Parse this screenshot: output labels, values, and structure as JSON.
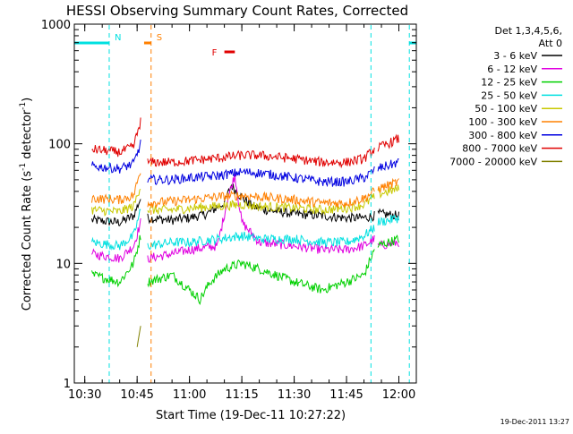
{
  "chart_data": {
    "type": "line",
    "title": "HESSI Observing Summary Count Rates, Corrected",
    "xlabel": "Start Time (19-Dec-11 10:27:22)",
    "ylabel_parts": [
      "Corrected Count Rate (s",
      "-1",
      " detector",
      "-1",
      ")"
    ],
    "yscale": "log",
    "xlim": [
      "10:27",
      "12:05"
    ],
    "ylim": [
      1,
      1000
    ],
    "x_ticks": [
      "10:30",
      "10:45",
      "11:00",
      "11:15",
      "11:30",
      "11:45",
      "12:00"
    ],
    "y_ticks": [
      "1",
      "10",
      "100",
      "1000"
    ],
    "legend_title": [
      "Det 1,3,4,5,6,",
      "Att 0"
    ],
    "legend_position": "right",
    "footer": "19-Dec-2011 13:27",
    "gaps": [
      [
        "10:46",
        "10:48"
      ],
      [
        "11:53",
        "11:54"
      ]
    ],
    "series": [
      {
        "name": "3 - 6 keV",
        "color": "#000000",
        "points": [
          [
            "10:32",
            23
          ],
          [
            "10:40",
            22
          ],
          [
            "10:44",
            25
          ],
          [
            "10:46",
            35
          ],
          [
            "10:48",
            24
          ],
          [
            "10:55",
            23
          ],
          [
            "11:00",
            24
          ],
          [
            "11:05",
            26
          ],
          [
            "11:10",
            32
          ],
          [
            "11:12",
            45
          ],
          [
            "11:14",
            38
          ],
          [
            "11:18",
            30
          ],
          [
            "11:22",
            28
          ],
          [
            "11:30",
            26
          ],
          [
            "11:38",
            25
          ],
          [
            "11:45",
            24
          ],
          [
            "11:50",
            24
          ],
          [
            "11:53",
            25
          ],
          [
            "11:54",
            26
          ],
          [
            "12:00",
            25
          ]
        ]
      },
      {
        "name": "6 - 12 keV",
        "color": "#e000e0",
        "points": [
          [
            "10:32",
            12
          ],
          [
            "10:40",
            11
          ],
          [
            "10:44",
            14
          ],
          [
            "10:46",
            22
          ],
          [
            "10:48",
            11
          ],
          [
            "10:55",
            12
          ],
          [
            "11:00",
            13
          ],
          [
            "11:08",
            14
          ],
          [
            "11:11",
            35
          ],
          [
            "11:13",
            55
          ],
          [
            "11:15",
            22
          ],
          [
            "11:20",
            15
          ],
          [
            "11:30",
            14
          ],
          [
            "11:38",
            13
          ],
          [
            "11:45",
            13
          ],
          [
            "11:50",
            14
          ],
          [
            "11:53",
            16
          ],
          [
            "11:54",
            14
          ],
          [
            "12:00",
            15
          ]
        ]
      },
      {
        "name": "12 - 25 keV",
        "color": "#00d000",
        "points": [
          [
            "10:32",
            8
          ],
          [
            "10:40",
            7
          ],
          [
            "10:44",
            10
          ],
          [
            "10:46",
            17
          ],
          [
            "10:48",
            7
          ],
          [
            "10:55",
            8
          ],
          [
            "11:00",
            6
          ],
          [
            "11:03",
            5
          ],
          [
            "11:06",
            7
          ],
          [
            "11:10",
            9
          ],
          [
            "11:15",
            10
          ],
          [
            "11:20",
            9
          ],
          [
            "11:30",
            7
          ],
          [
            "11:38",
            6
          ],
          [
            "11:45",
            7
          ],
          [
            "11:50",
            8
          ],
          [
            "11:53",
            13
          ],
          [
            "11:54",
            14
          ],
          [
            "12:00",
            16
          ]
        ]
      },
      {
        "name": "25 - 50 keV",
        "color": "#00e0e0",
        "points": [
          [
            "10:32",
            15
          ],
          [
            "10:40",
            14
          ],
          [
            "10:44",
            17
          ],
          [
            "10:46",
            28
          ],
          [
            "10:48",
            14
          ],
          [
            "10:55",
            15
          ],
          [
            "11:00",
            15
          ],
          [
            "11:08",
            16
          ],
          [
            "11:15",
            17
          ],
          [
            "11:20",
            16
          ],
          [
            "11:30",
            16
          ],
          [
            "11:38",
            15
          ],
          [
            "11:45",
            15
          ],
          [
            "11:50",
            17
          ],
          [
            "11:53",
            20
          ],
          [
            "11:54",
            22
          ],
          [
            "12:00",
            24
          ]
        ]
      },
      {
        "name": "50 - 100 keV",
        "color": "#c8c800",
        "points": [
          [
            "10:32",
            28
          ],
          [
            "10:40",
            27
          ],
          [
            "10:44",
            30
          ],
          [
            "10:46",
            45
          ],
          [
            "10:48",
            28
          ],
          [
            "10:55",
            28
          ],
          [
            "11:00",
            29
          ],
          [
            "11:08",
            30
          ],
          [
            "11:15",
            31
          ],
          [
            "11:20",
            30
          ],
          [
            "11:30",
            29
          ],
          [
            "11:38",
            28
          ],
          [
            "11:45",
            29
          ],
          [
            "11:50",
            31
          ],
          [
            "11:53",
            36
          ],
          [
            "11:54",
            38
          ],
          [
            "12:00",
            42
          ]
        ]
      },
      {
        "name": "100 - 300 keV",
        "color": "#ff8000",
        "points": [
          [
            "10:32",
            35
          ],
          [
            "10:40",
            34
          ],
          [
            "10:44",
            37
          ],
          [
            "10:46",
            60
          ],
          [
            "10:48",
            32
          ],
          [
            "10:55",
            33
          ],
          [
            "11:00",
            34
          ],
          [
            "11:08",
            36
          ],
          [
            "11:15",
            37
          ],
          [
            "11:20",
            36
          ],
          [
            "11:30",
            34
          ],
          [
            "11:38",
            32
          ],
          [
            "11:45",
            32
          ],
          [
            "11:50",
            35
          ],
          [
            "11:53",
            40
          ],
          [
            "11:54",
            42
          ],
          [
            "12:00",
            48
          ]
        ]
      },
      {
        "name": "300 - 800 keV",
        "color": "#0000e0",
        "points": [
          [
            "10:32",
            65
          ],
          [
            "10:40",
            62
          ],
          [
            "10:44",
            68
          ],
          [
            "10:46",
            100
          ],
          [
            "10:48",
            50
          ],
          [
            "10:55",
            50
          ],
          [
            "11:00",
            52
          ],
          [
            "11:08",
            54
          ],
          [
            "11:15",
            58
          ],
          [
            "11:20",
            57
          ],
          [
            "11:30",
            52
          ],
          [
            "11:38",
            48
          ],
          [
            "11:45",
            48
          ],
          [
            "11:50",
            52
          ],
          [
            "11:53",
            60
          ],
          [
            "11:54",
            62
          ],
          [
            "12:00",
            70
          ]
        ]
      },
      {
        "name": "800 - 7000 keV",
        "color": "#e00000",
        "points": [
          [
            "10:32",
            90
          ],
          [
            "10:40",
            85
          ],
          [
            "10:44",
            95
          ],
          [
            "10:46",
            155
          ],
          [
            "10:48",
            70
          ],
          [
            "10:55",
            70
          ],
          [
            "11:00",
            72
          ],
          [
            "11:08",
            76
          ],
          [
            "11:15",
            80
          ],
          [
            "11:20",
            80
          ],
          [
            "11:30",
            75
          ],
          [
            "11:38",
            70
          ],
          [
            "11:45",
            70
          ],
          [
            "11:50",
            75
          ],
          [
            "11:53",
            90
          ],
          [
            "11:54",
            92
          ],
          [
            "12:00",
            110
          ]
        ]
      },
      {
        "name": "7000 - 20000 keV",
        "color": "#808000",
        "points": [
          [
            "10:45",
            2
          ],
          [
            "10:46",
            3
          ],
          [
            "10:47",
            4
          ]
        ]
      }
    ],
    "flag_lines": [
      {
        "label": "N",
        "x": "10:37",
        "color": "#00e0e0",
        "style": "dashed"
      },
      {
        "label": "S",
        "x": "10:49",
        "color": "#ff8000",
        "style": "dashed"
      },
      {
        "x": "11:52",
        "color": "#00e0e0",
        "style": "dashed"
      },
      {
        "x": "12:03",
        "color": "#00e0e0",
        "style": "dashed"
      }
    ],
    "flag_bars": [
      {
        "label": "F",
        "start": "11:10",
        "end": "11:13",
        "color": "#e00000"
      },
      {
        "start": "10:27",
        "end": "10:37",
        "color": "#00e0e0"
      },
      {
        "start": "12:03",
        "end": "12:05",
        "color": "#00e0e0"
      },
      {
        "start": "10:47",
        "end": "10:49",
        "color": "#ff8000"
      }
    ]
  }
}
